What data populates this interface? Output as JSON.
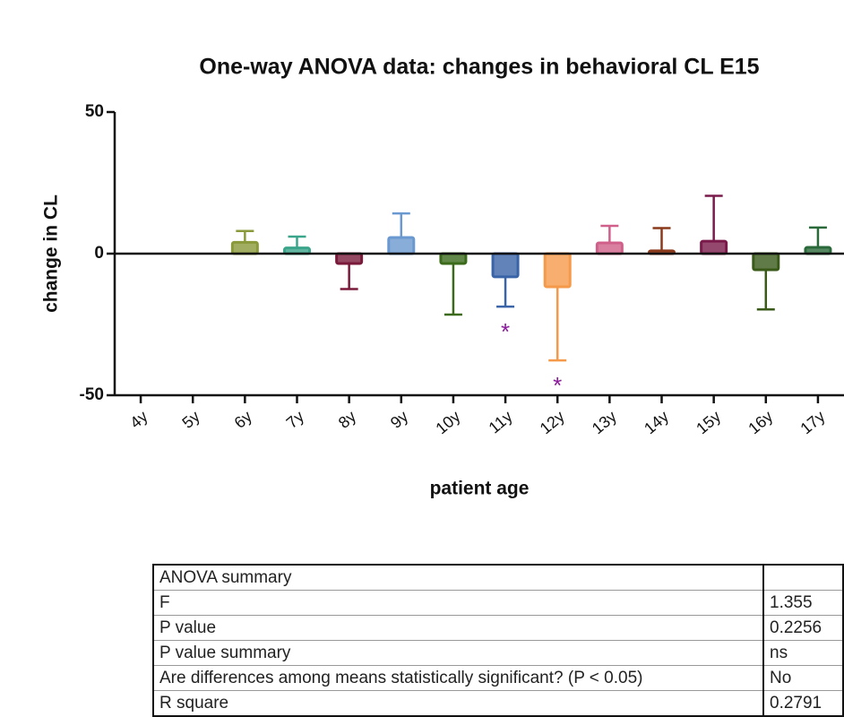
{
  "chart_data": {
    "type": "bar",
    "title": "One-way ANOVA data: changes in behavioral CL E15",
    "x_label": "patient age",
    "y_label": "change in CL",
    "categories": [
      "4y",
      "5y",
      "6y",
      "7y",
      "8y",
      "9y",
      "10y",
      "11y",
      "12y",
      "13y",
      "14y",
      "15y",
      "16y",
      "17y"
    ],
    "values": [
      null,
      null,
      4,
      2,
      -3.5,
      5.7,
      -3.5,
      -8.2,
      -11.7,
      3.8,
      1,
      4.4,
      -5.7,
      2.2
    ],
    "errors": [
      null,
      null,
      4,
      4,
      9,
      8.5,
      18,
      10.5,
      26,
      6,
      8,
      16,
      14,
      7
    ],
    "colors": [
      null,
      null,
      "#8a9a3a",
      "#3aa58a",
      "#7a1a3a",
      "#6a98d0",
      "#3a6a1a",
      "#3a64a8",
      "#f59a4a",
      "#d0608a",
      "#8a3a1a",
      "#7a1a4a",
      "#3a5a1a",
      "#2a6a3a"
    ],
    "annotations": [
      {
        "text": "*",
        "x": "11y"
      },
      {
        "text": "*",
        "x": "12y"
      }
    ],
    "annotation_color": "#8a1a9a",
    "ylim": [
      -50,
      50
    ],
    "yticks": [
      -50,
      0,
      50
    ]
  },
  "table": {
    "rows": [
      [
        "ANOVA summary"
      ],
      [
        "F",
        "1.355"
      ],
      [
        "P value",
        "0.2256"
      ],
      [
        "P value summary",
        "ns"
      ],
      [
        "Are differences among means statistically significant? (P < 0.05)",
        "No"
      ],
      [
        "R square",
        "0.2791"
      ]
    ]
  }
}
